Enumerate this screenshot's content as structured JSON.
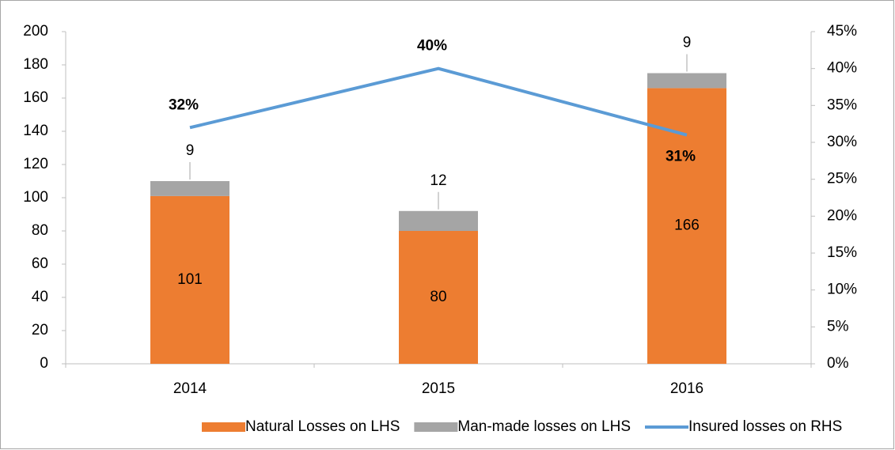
{
  "chart_data": {
    "type": "bar",
    "categories": [
      "2014",
      "2015",
      "2016"
    ],
    "series": [
      {
        "name": "Natural Losses on LHS",
        "type": "bar",
        "color": "#ed7d31",
        "values": [
          101,
          80,
          166
        ]
      },
      {
        "name": "Man-made losses on  LHS",
        "type": "bar",
        "color": "#a5a5a5",
        "values": [
          9,
          12,
          9
        ]
      },
      {
        "name": "Insured losses on RHS",
        "type": "line",
        "axis": "y2",
        "color": "#5b9bd5",
        "values": [
          32,
          40,
          31
        ],
        "value_labels": [
          "32%",
          "40%",
          "31%"
        ]
      }
    ],
    "stacked": true,
    "ylim": [
      0,
      200
    ],
    "yticks": [
      0,
      20,
      40,
      60,
      80,
      100,
      120,
      140,
      160,
      180,
      200
    ],
    "y2lim": [
      0,
      45
    ],
    "y2ticks": [
      {
        "value": 0,
        "label": "0%"
      },
      {
        "value": 5,
        "label": "5%"
      },
      {
        "value": 10,
        "label": "10%"
      },
      {
        "value": 15,
        "label": "15%"
      },
      {
        "value": 20,
        "label": "20%"
      },
      {
        "value": 25,
        "label": "25%"
      },
      {
        "value": 30,
        "label": "30%"
      },
      {
        "value": 35,
        "label": "35%"
      },
      {
        "value": 40,
        "label": "40%"
      },
      {
        "value": 45,
        "label": "45%"
      }
    ],
    "grid": false,
    "legend": "bottom"
  }
}
